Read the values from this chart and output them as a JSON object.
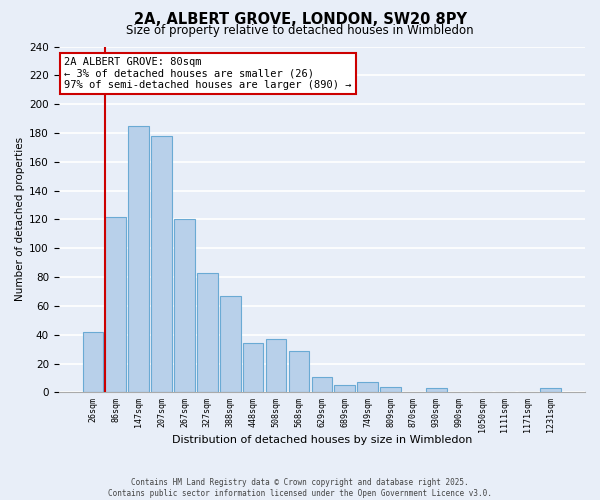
{
  "title": "2A, ALBERT GROVE, LONDON, SW20 8PY",
  "subtitle": "Size of property relative to detached houses in Wimbledon",
  "xlabel": "Distribution of detached houses by size in Wimbledon",
  "ylabel": "Number of detached properties",
  "bar_labels": [
    "26sqm",
    "86sqm",
    "147sqm",
    "207sqm",
    "267sqm",
    "327sqm",
    "388sqm",
    "448sqm",
    "508sqm",
    "568sqm",
    "629sqm",
    "689sqm",
    "749sqm",
    "809sqm",
    "870sqm",
    "930sqm",
    "990sqm",
    "1050sqm",
    "1111sqm",
    "1171sqm",
    "1231sqm"
  ],
  "bar_values": [
    42,
    122,
    185,
    178,
    120,
    83,
    67,
    34,
    37,
    29,
    11,
    5,
    7,
    4,
    0,
    3,
    0,
    0,
    0,
    0,
    3
  ],
  "bar_color": "#b8d0ea",
  "bar_edge_color": "#6aaad4",
  "highlight_color": "#cc0000",
  "ylim": [
    0,
    240
  ],
  "yticks": [
    0,
    20,
    40,
    60,
    80,
    100,
    120,
    140,
    160,
    180,
    200,
    220,
    240
  ],
  "annotation_title": "2A ALBERT GROVE: 80sqm",
  "annotation_line1": "← 3% of detached houses are smaller (26)",
  "annotation_line2": "97% of semi-detached houses are larger (890) →",
  "annotation_box_color": "#ffffff",
  "annotation_border_color": "#cc0000",
  "footer_line1": "Contains HM Land Registry data © Crown copyright and database right 2025.",
  "footer_line2": "Contains public sector information licensed under the Open Government Licence v3.0.",
  "bg_color": "#e8eef8",
  "grid_color": "#ffffff"
}
